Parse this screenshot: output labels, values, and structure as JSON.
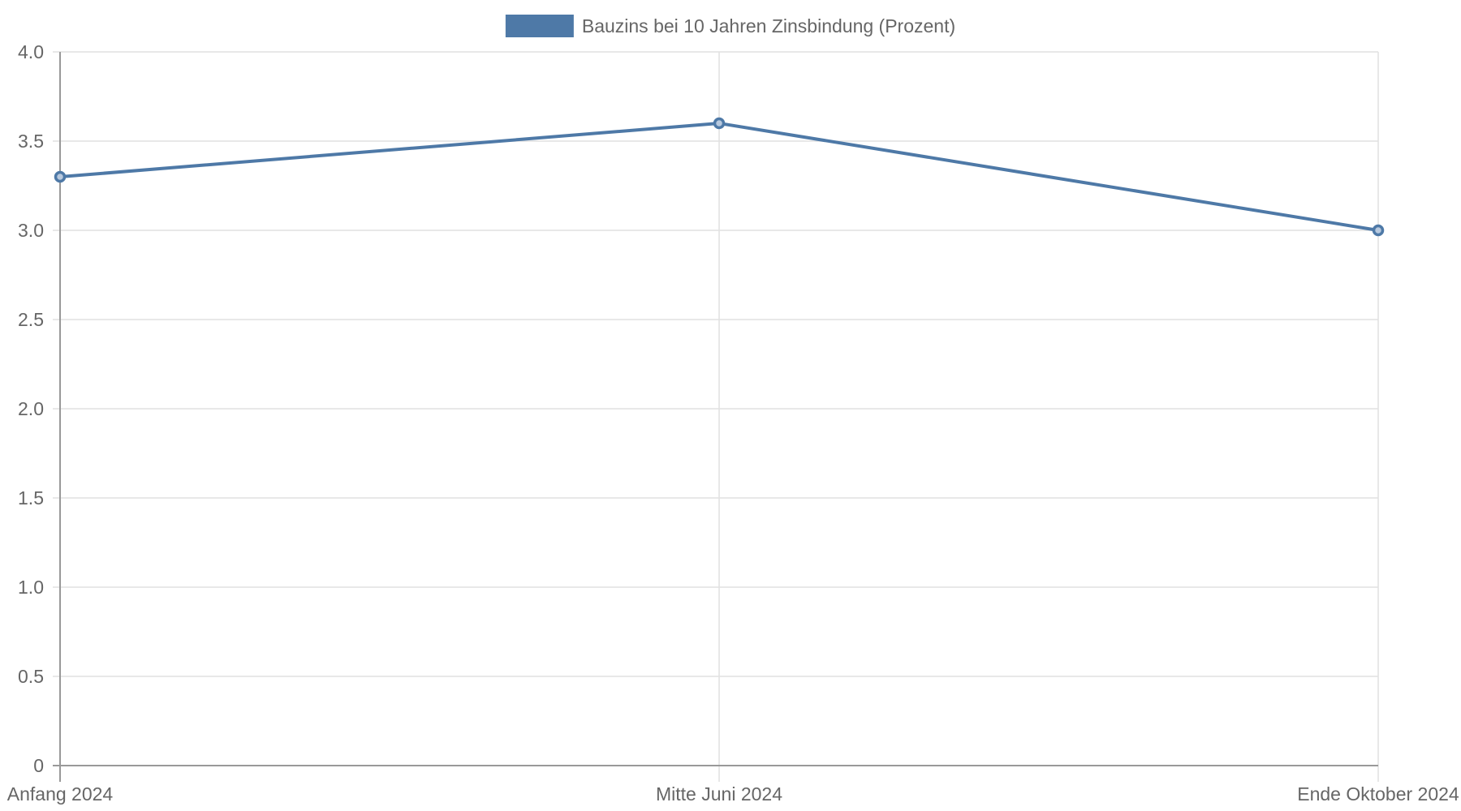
{
  "chart_data": {
    "type": "line",
    "categories": [
      "Anfang 2024",
      "Mitte Juni 2024",
      "Ende Oktober 2024"
    ],
    "series": [
      {
        "name": "Bauzins bei 10 Jahren Zinsbindung (Prozent)",
        "values": [
          3.3,
          3.6,
          3.0
        ],
        "color": "#4e79a7"
      }
    ],
    "ylim": [
      0,
      4.0
    ],
    "yticks": [
      "0",
      "0.5",
      "1.0",
      "1.5",
      "2.0",
      "2.5",
      "3.0",
      "3.5",
      "4.0"
    ],
    "ytick_values": [
      0,
      0.5,
      1.0,
      1.5,
      2.0,
      2.5,
      3.0,
      3.5,
      4.0
    ],
    "grid": true,
    "legend_position": "top-center",
    "title": "",
    "xlabel": "",
    "ylabel": ""
  },
  "colors": {
    "grid": "#e1e1e1",
    "axis": "#999999",
    "text": "#666666"
  }
}
